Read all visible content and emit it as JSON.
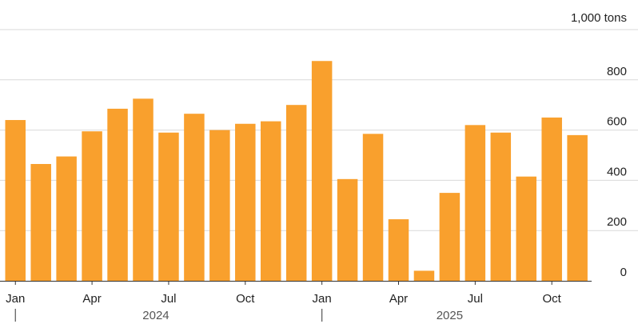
{
  "chart_data": {
    "type": "bar",
    "unit_label": "1,000 tons",
    "ylim": [
      0,
      1000
    ],
    "y_ticks": [
      "0",
      "200",
      "400",
      "600",
      "800"
    ],
    "grid": true,
    "bar_color": "#F9A02D",
    "grid_color": "#d9d9d9",
    "categories": [
      "2024-01",
      "2024-02",
      "2024-03",
      "2024-04",
      "2024-05",
      "2024-06",
      "2024-07",
      "2024-08",
      "2024-09",
      "2024-10",
      "2024-11",
      "2024-12",
      "2025-01",
      "2025-02",
      "2025-03",
      "2025-04",
      "2025-05",
      "2025-06",
      "2025-07",
      "2025-08",
      "2025-09",
      "2025-10",
      "2025-11"
    ],
    "values": [
      640,
      465,
      495,
      595,
      685,
      725,
      590,
      665,
      600,
      625,
      635,
      700,
      875,
      405,
      585,
      245,
      40,
      350,
      620,
      590,
      415,
      650,
      580
    ],
    "x_tick_labels": [
      {
        "index": 0,
        "label": "Jan"
      },
      {
        "index": 3,
        "label": "Apr"
      },
      {
        "index": 6,
        "label": "Jul"
      },
      {
        "index": 9,
        "label": "Oct"
      },
      {
        "index": 12,
        "label": "Jan"
      },
      {
        "index": 15,
        "label": "Apr"
      },
      {
        "index": 18,
        "label": "Jul"
      },
      {
        "index": 21,
        "label": "Oct"
      }
    ],
    "year_labels": [
      {
        "label": "2024",
        "start_index": 0,
        "end_index": 11
      },
      {
        "label": "2025",
        "start_index": 12,
        "end_index": 22
      }
    ]
  }
}
